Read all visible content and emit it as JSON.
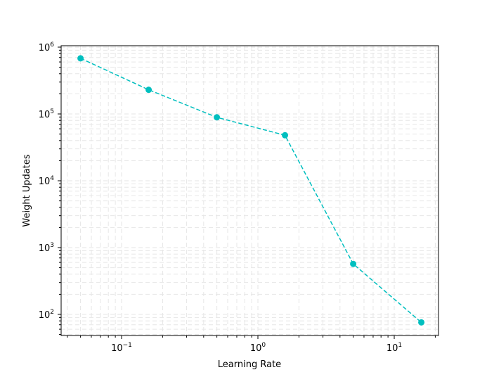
{
  "chart_data": {
    "type": "line",
    "title": "",
    "xlabel": "Learning Rate",
    "ylabel": "Weight Updates",
    "xscale": "log",
    "yscale": "log",
    "xlim": [
      0.04,
      21
    ],
    "ylim": [
      50,
      1000000
    ],
    "x_ticks": [
      {
        "value": 0.1,
        "base": "10",
        "exp": "−1"
      },
      {
        "value": 1,
        "base": "10",
        "exp": "0"
      },
      {
        "value": 10,
        "base": "10",
        "exp": "1"
      }
    ],
    "y_ticks": [
      {
        "value": 100,
        "base": "10",
        "exp": "2"
      },
      {
        "value": 1000,
        "base": "10",
        "exp": "3"
      },
      {
        "value": 10000,
        "base": "10",
        "exp": "4"
      },
      {
        "value": 100000,
        "base": "10",
        "exp": "5"
      },
      {
        "value": 1000000,
        "base": "10",
        "exp": "6"
      }
    ],
    "grid": {
      "on": true,
      "which": "both",
      "style": "dashed",
      "color": "#e6e6e6"
    },
    "legend": null,
    "series": [
      {
        "name": "Weight Updates",
        "color": "#00bfbf",
        "linestyle": "dashed",
        "marker": "circle",
        "x": [
          0.05,
          0.158,
          0.5,
          1.58,
          5.0,
          15.8
        ],
        "y": [
          680000,
          230000,
          89000,
          48000,
          570,
          76
        ]
      }
    ]
  }
}
